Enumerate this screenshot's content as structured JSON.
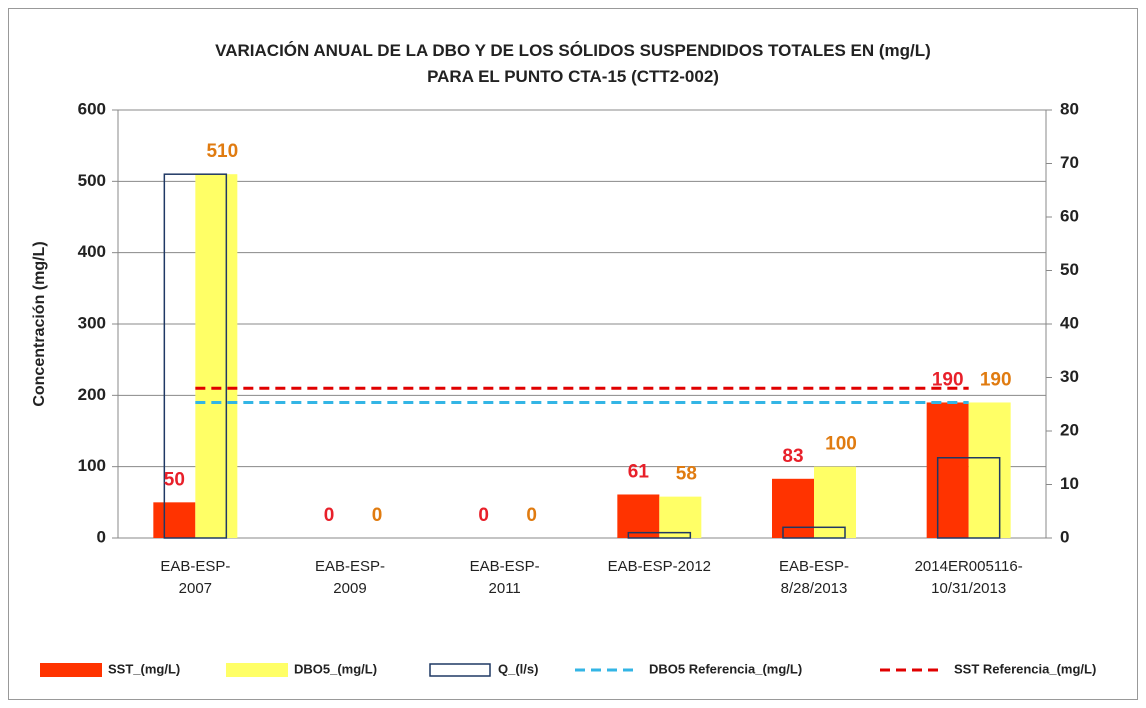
{
  "chart_data": {
    "type": "bar",
    "title": "VARIACIÓN ANUAL DE LA DBO Y DE LOS SÓLIDOS SUSPENDIDOS TOTALES EN (mg/L)\nPARA EL PUNTO CTA-15 (CTT2-002)",
    "y_label": "Concentración (mg/L)",
    "categories": [
      "EAB-ESP-\n2007",
      "EAB-ESP-\n2009",
      "EAB-ESP-\n2011",
      "EAB-ESP-2012",
      "EAB-ESP-\n8/28/2013",
      "2014ER005116-\n10/31/2013"
    ],
    "series": [
      {
        "name": "SST_(mg/L)",
        "type": "bar",
        "color": "#ff3300",
        "label_color": "#e8202a",
        "values": [
          50,
          0,
          0,
          61,
          83,
          190
        ]
      },
      {
        "name": "DBO5_(mg/L)",
        "type": "bar",
        "color": "#ffff66",
        "label_color": "#e07b10",
        "values": [
          510,
          0,
          0,
          58,
          100,
          190
        ]
      },
      {
        "name": "Q_(l/s)",
        "type": "outline",
        "axis": "y2",
        "color": "#1f3864",
        "values": [
          68,
          null,
          null,
          1,
          2,
          15
        ]
      },
      {
        "name": "DBO5 Referencia_(mg/L)",
        "type": "line",
        "color": "#33b5e5",
        "values": [
          190,
          190,
          190,
          190,
          190,
          190
        ]
      },
      {
        "name": "SST Referencia_(mg/L)",
        "type": "line",
        "color": "#e00000",
        "values": [
          210,
          210,
          210,
          210,
          210,
          210
        ]
      }
    ],
    "ylim": [
      0,
      600
    ],
    "yticks": [
      0,
      100,
      200,
      300,
      400,
      500,
      600
    ],
    "y2lim": [
      0,
      80
    ],
    "y2ticks": [
      0,
      10,
      20,
      30,
      40,
      50,
      60,
      70,
      80
    ],
    "grid": true,
    "legend": "bottom"
  }
}
